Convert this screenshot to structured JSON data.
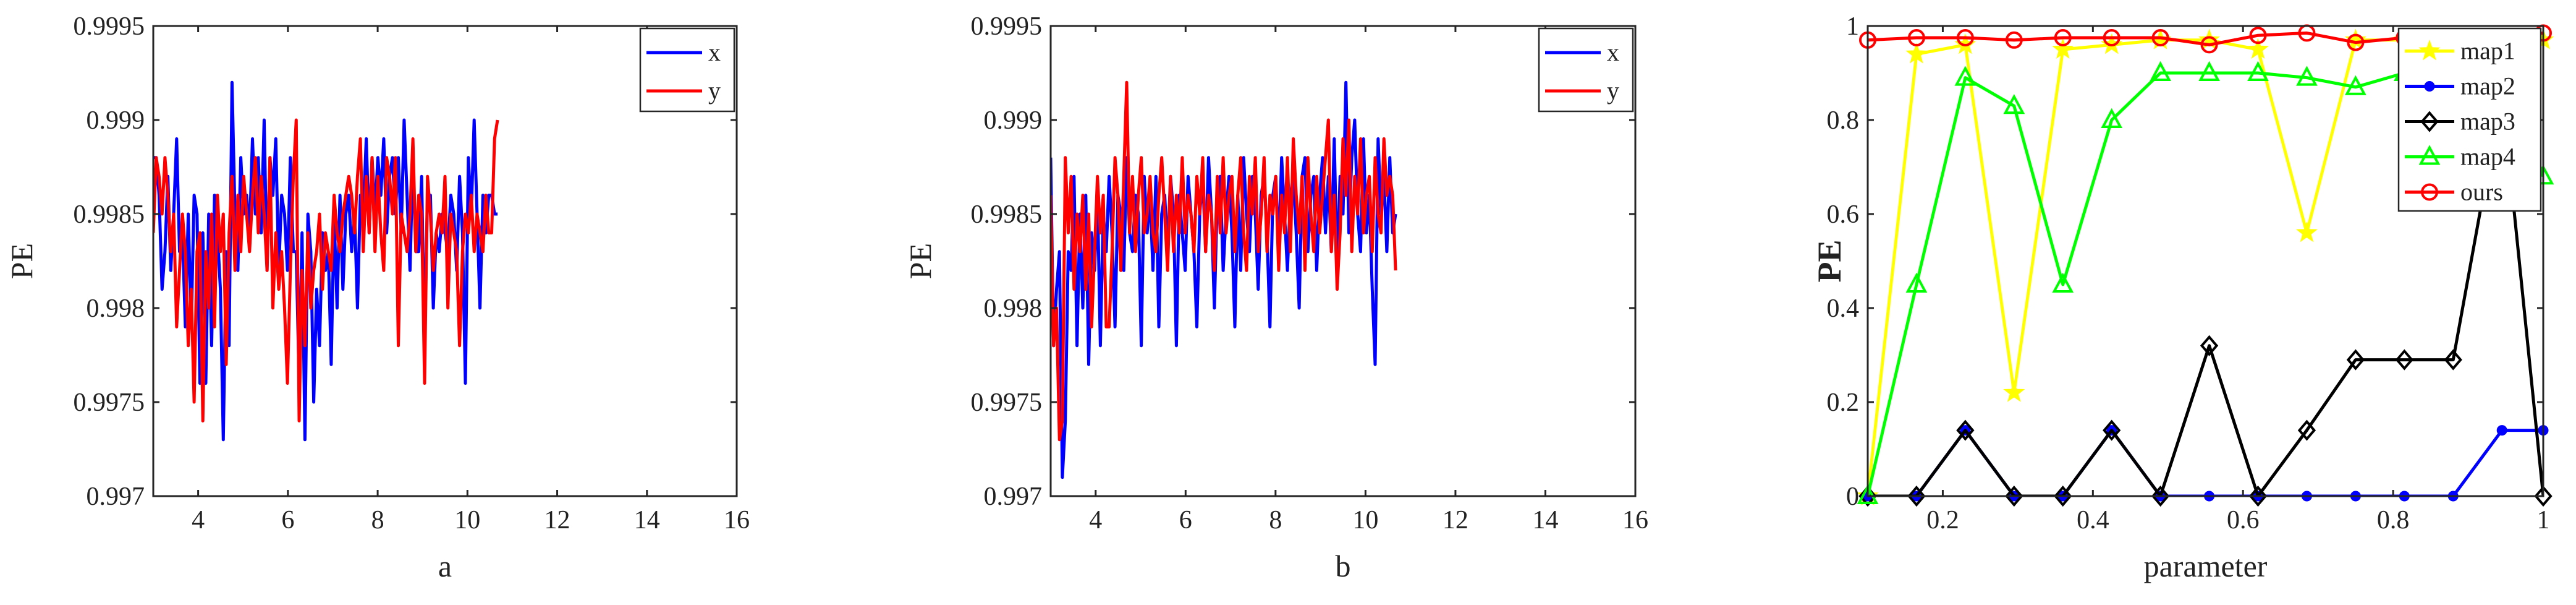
{
  "chart_data": [
    {
      "type": "line",
      "xlabel": "a",
      "ylabel": "PE",
      "xlim": [
        3,
        16
      ],
      "ylim": [
        0.997,
        0.9995
      ],
      "xticks": [
        4,
        6,
        8,
        10,
        12,
        14,
        16
      ],
      "yticks": [
        0.997,
        0.9975,
        0.998,
        0.9985,
        0.999,
        0.9995
      ],
      "yticklabels": [
        "0.997",
        "0.9975",
        "0.998",
        "0.9985",
        "0.999",
        "0.9995"
      ],
      "grid": false,
      "legend_position": "top-right",
      "x_start": 3,
      "x_step": 0.065,
      "series": [
        {
          "name": "x",
          "color": "#0000ff",
          "values": [
            0.9988,
            0.9988,
            0.9986,
            0.9981,
            0.9983,
            0.9987,
            0.9982,
            0.9985,
            0.9989,
            0.9983,
            0.9984,
            0.9979,
            0.9985,
            0.9979,
            0.9986,
            0.9985,
            0.9976,
            0.9984,
            0.9976,
            0.9985,
            0.9978,
            0.9986,
            0.9984,
            0.9981,
            0.9973,
            0.9983,
            0.9978,
            0.9992,
            0.9985,
            0.9982,
            0.9988,
            0.9985,
            0.9986,
            0.9984,
            0.9989,
            0.9985,
            0.9988,
            0.9984,
            0.999,
            0.9982,
            0.9988,
            0.9986,
            0.9989,
            0.9982,
            0.9986,
            0.9985,
            0.9982,
            0.9988,
            0.9983,
            0.9983,
            0.9976,
            0.9984,
            0.9973,
            0.9985,
            0.9983,
            0.9975,
            0.9981,
            0.9978,
            0.9984,
            0.9982,
            0.9983,
            0.9977,
            0.9985,
            0.998,
            0.9986,
            0.9981,
            0.9985,
            0.9986,
            0.9983,
            0.9985,
            0.998,
            0.9986,
            0.9985,
            0.9989,
            0.9984,
            0.9988,
            0.9985,
            0.9988,
            0.9986,
            0.9989,
            0.9984,
            0.9987,
            0.9988,
            0.9985,
            0.9988,
            0.9984,
            0.999,
            0.9986,
            0.9982,
            0.9988,
            0.9983,
            0.9983,
            0.9987,
            0.9978,
            0.9986,
            0.9986,
            0.998,
            0.9984,
            0.9983,
            0.9985,
            0.9984,
            0.9983,
            0.9986,
            0.9985,
            0.9982,
            0.9987,
            0.9984,
            0.9976,
            0.9988,
            0.9985,
            0.999,
            0.9985,
            0.998,
            0.9986,
            0.9984,
            0.9986,
            0.9986,
            0.9985,
            0.9985
          ]
        },
        {
          "name": "y",
          "color": "#ff0000",
          "values": [
            0.9984,
            0.9988,
            0.9987,
            0.9985,
            0.9988,
            0.9986,
            0.9983,
            0.9985,
            0.9979,
            0.9982,
            0.9985,
            0.9983,
            0.9978,
            0.9981,
            0.9975,
            0.9983,
            0.9984,
            0.9974,
            0.9983,
            0.998,
            0.9985,
            0.9979,
            0.9986,
            0.9983,
            0.9985,
            0.9977,
            0.9984,
            0.9987,
            0.9982,
            0.9986,
            0.9983,
            0.9987,
            0.9985,
            0.9983,
            0.9986,
            0.9988,
            0.9984,
            0.9987,
            0.9985,
            0.9982,
            0.9988,
            0.998,
            0.9984,
            0.9981,
            0.9983,
            0.998,
            0.9976,
            0.9982,
            0.9987,
            0.999,
            0.9974,
            0.9982,
            0.9978,
            0.9984,
            0.998,
            0.9982,
            0.9983,
            0.9985,
            0.9981,
            0.9984,
            0.9983,
            0.9982,
            0.9986,
            0.9984,
            0.9983,
            0.9985,
            0.9986,
            0.9987,
            0.9986,
            0.9984,
            0.9987,
            0.9989,
            0.9983,
            0.9987,
            0.9984,
            0.9988,
            0.9983,
            0.9987,
            0.9984,
            0.9982,
            0.9988,
            0.9987,
            0.9985,
            0.9988,
            0.9978,
            0.9985,
            0.9984,
            0.9983,
            0.9985,
            0.9989,
            0.9983,
            0.9986,
            0.9985,
            0.9976,
            0.9987,
            0.9985,
            0.9982,
            0.9984,
            0.9985,
            0.9984,
            0.9987,
            0.998,
            0.9985,
            0.9984,
            0.9983,
            0.9978,
            0.9983,
            0.9985,
            0.9984,
            0.9986,
            0.9983,
            0.9985,
            0.9984,
            0.9983,
            0.9986,
            0.9984,
            0.9984,
            0.9989,
            0.999
          ]
        }
      ]
    },
    {
      "type": "line",
      "xlabel": "b",
      "ylabel": "PE",
      "xlim": [
        3,
        16
      ],
      "ylim": [
        0.997,
        0.9995
      ],
      "xticks": [
        4,
        6,
        8,
        10,
        12,
        14,
        16
      ],
      "yticks": [
        0.997,
        0.9975,
        0.998,
        0.9985,
        0.999,
        0.9995
      ],
      "yticklabels": [
        "0.997",
        "0.9975",
        "0.998",
        "0.9985",
        "0.999",
        "0.9995"
      ],
      "grid": false,
      "legend_position": "top-right",
      "x_start": 3,
      "x_step": 0.065,
      "series": [
        {
          "name": "x",
          "color": "#0000ff",
          "values": [
            0.9988,
            0.9978,
            0.9981,
            0.9983,
            0.9971,
            0.9974,
            0.9983,
            0.9982,
            0.9987,
            0.9978,
            0.9985,
            0.998,
            0.9986,
            0.9977,
            0.9984,
            0.9982,
            0.9986,
            0.9978,
            0.9985,
            0.9983,
            0.9987,
            0.9984,
            0.9979,
            0.9986,
            0.9985,
            0.9982,
            0.9988,
            0.9984,
            0.9983,
            0.9986,
            0.9985,
            0.9978,
            0.9987,
            0.9984,
            0.9986,
            0.9982,
            0.9987,
            0.9979,
            0.9985,
            0.9986,
            0.9983,
            0.9987,
            0.9985,
            0.9978,
            0.9986,
            0.9984,
            0.9982,
            0.9987,
            0.9985,
            0.9983,
            0.9979,
            0.9985,
            0.9987,
            0.9983,
            0.9988,
            0.9985,
            0.998,
            0.9986,
            0.9987,
            0.9982,
            0.9985,
            0.9987,
            0.9984,
            0.9979,
            0.9986,
            0.9982,
            0.9988,
            0.9985,
            0.9983,
            0.9987,
            0.9985,
            0.9981,
            0.9986,
            0.9987,
            0.9984,
            0.9979,
            0.9986,
            0.9987,
            0.9983,
            0.9988,
            0.9985,
            0.9982,
            0.9986,
            0.9987,
            0.9984,
            0.998,
            0.9987,
            0.9988,
            0.9983,
            0.9986,
            0.9987,
            0.9982,
            0.9986,
            0.9988,
            0.9984,
            0.9987,
            0.9983,
            0.9989,
            0.9982,
            0.9987,
            0.9985,
            0.9992,
            0.9984,
            0.9988,
            0.999,
            0.9985,
            0.9983,
            0.9989,
            0.9984,
            0.9986,
            0.9981,
            0.9977,
            0.9989,
            0.9985,
            0.9987,
            0.9983,
            0.9988,
            0.9984,
            0.9985
          ]
        },
        {
          "name": "y",
          "color": "#ff0000",
          "values": [
            0.9986,
            0.9978,
            0.998,
            0.9973,
            0.9974,
            0.9988,
            0.9984,
            0.9987,
            0.9981,
            0.9985,
            0.9983,
            0.9986,
            0.9981,
            0.9985,
            0.9979,
            0.9983,
            0.9987,
            0.9984,
            0.9986,
            0.9979,
            0.9979,
            0.9983,
            0.9988,
            0.9986,
            0.9982,
            0.9987,
            0.9992,
            0.9984,
            0.9987,
            0.9983,
            0.9986,
            0.9988,
            0.9984,
            0.9985,
            0.9987,
            0.9984,
            0.9983,
            0.9986,
            0.9988,
            0.9985,
            0.9982,
            0.9987,
            0.9983,
            0.9986,
            0.9984,
            0.9988,
            0.9984,
            0.9986,
            0.9985,
            0.9983,
            0.9987,
            0.9985,
            0.9988,
            0.9983,
            0.9986,
            0.9985,
            0.9982,
            0.9987,
            0.9984,
            0.9988,
            0.9984,
            0.9986,
            0.9987,
            0.9983,
            0.9986,
            0.9988,
            0.9984,
            0.9982,
            0.9987,
            0.9985,
            0.9988,
            0.9983,
            0.9985,
            0.9988,
            0.9983,
            0.9986,
            0.9985,
            0.9987,
            0.9982,
            0.9986,
            0.9984,
            0.9988,
            0.9983,
            0.9989,
            0.9986,
            0.9984,
            0.9987,
            0.9982,
            0.9988,
            0.9985,
            0.9983,
            0.9987,
            0.9984,
            0.9986,
            0.9988,
            0.999,
            0.9983,
            0.9986,
            0.9981,
            0.9984,
            0.9989,
            0.9986,
            0.999,
            0.9983,
            0.9987,
            0.9985,
            0.9989,
            0.9984,
            0.9986,
            0.9987,
            0.9983,
            0.9988,
            0.9985,
            0.9984,
            0.9989,
            0.9986,
            0.9987,
            0.9986,
            0.9982
          ]
        }
      ]
    },
    {
      "type": "line",
      "xlabel": "parameter",
      "ylabel": "PE",
      "xlim": [
        0.1,
        1
      ],
      "ylim": [
        0,
        1
      ],
      "xticks": [
        0.2,
        0.4,
        0.6,
        0.8,
        1
      ],
      "xticklabels": [
        "0.2",
        "0.4",
        "0.6",
        "0.8",
        "1"
      ],
      "yticks": [
        0,
        0.2,
        0.4,
        0.6,
        0.8,
        1
      ],
      "yticklabels": [
        "0",
        "0.2",
        "0.4",
        "0.6",
        "0.8",
        "1"
      ],
      "grid": false,
      "legend_position": "top-right",
      "x": [
        0.1,
        0.165,
        0.23,
        0.295,
        0.36,
        0.425,
        0.49,
        0.555,
        0.62,
        0.685,
        0.75,
        0.815,
        0.88,
        0.945,
        1.0
      ],
      "series": [
        {
          "name": "map1",
          "color": "#ffff00",
          "marker": "star",
          "values": [
            0,
            0.94,
            0.96,
            0.22,
            0.95,
            0.96,
            0.97,
            0.97,
            0.95,
            0.56,
            0.97,
            0.97,
            0.97,
            0.97,
            0.97
          ]
        },
        {
          "name": "map2",
          "color": "#0000ff",
          "marker": "dot",
          "values": [
            0,
            0,
            0.14,
            0,
            0,
            0.14,
            0,
            0,
            0,
            0,
            0,
            0,
            0,
            0.14,
            0.14
          ]
        },
        {
          "name": "map3",
          "color": "#000000",
          "marker": "diamond",
          "values": [
            0,
            0,
            0.14,
            0,
            0,
            0.14,
            0,
            0.32,
            0,
            0.14,
            0.29,
            0.29,
            0.29,
            0.86,
            0
          ]
        },
        {
          "name": "map4",
          "color": "#00ff00",
          "marker": "triangle",
          "values": [
            0,
            0.45,
            0.89,
            0.83,
            0.45,
            0.8,
            0.9,
            0.9,
            0.9,
            0.89,
            0.87,
            0.9,
            0.91,
            0.95,
            0.68
          ]
        },
        {
          "name": "ours",
          "color": "#ff0000",
          "marker": "circle",
          "values": [
            0.97,
            0.975,
            0.975,
            0.97,
            0.975,
            0.975,
            0.975,
            0.96,
            0.98,
            0.985,
            0.965,
            0.975,
            0.975,
            0.975,
            0.985
          ]
        }
      ]
    }
  ]
}
